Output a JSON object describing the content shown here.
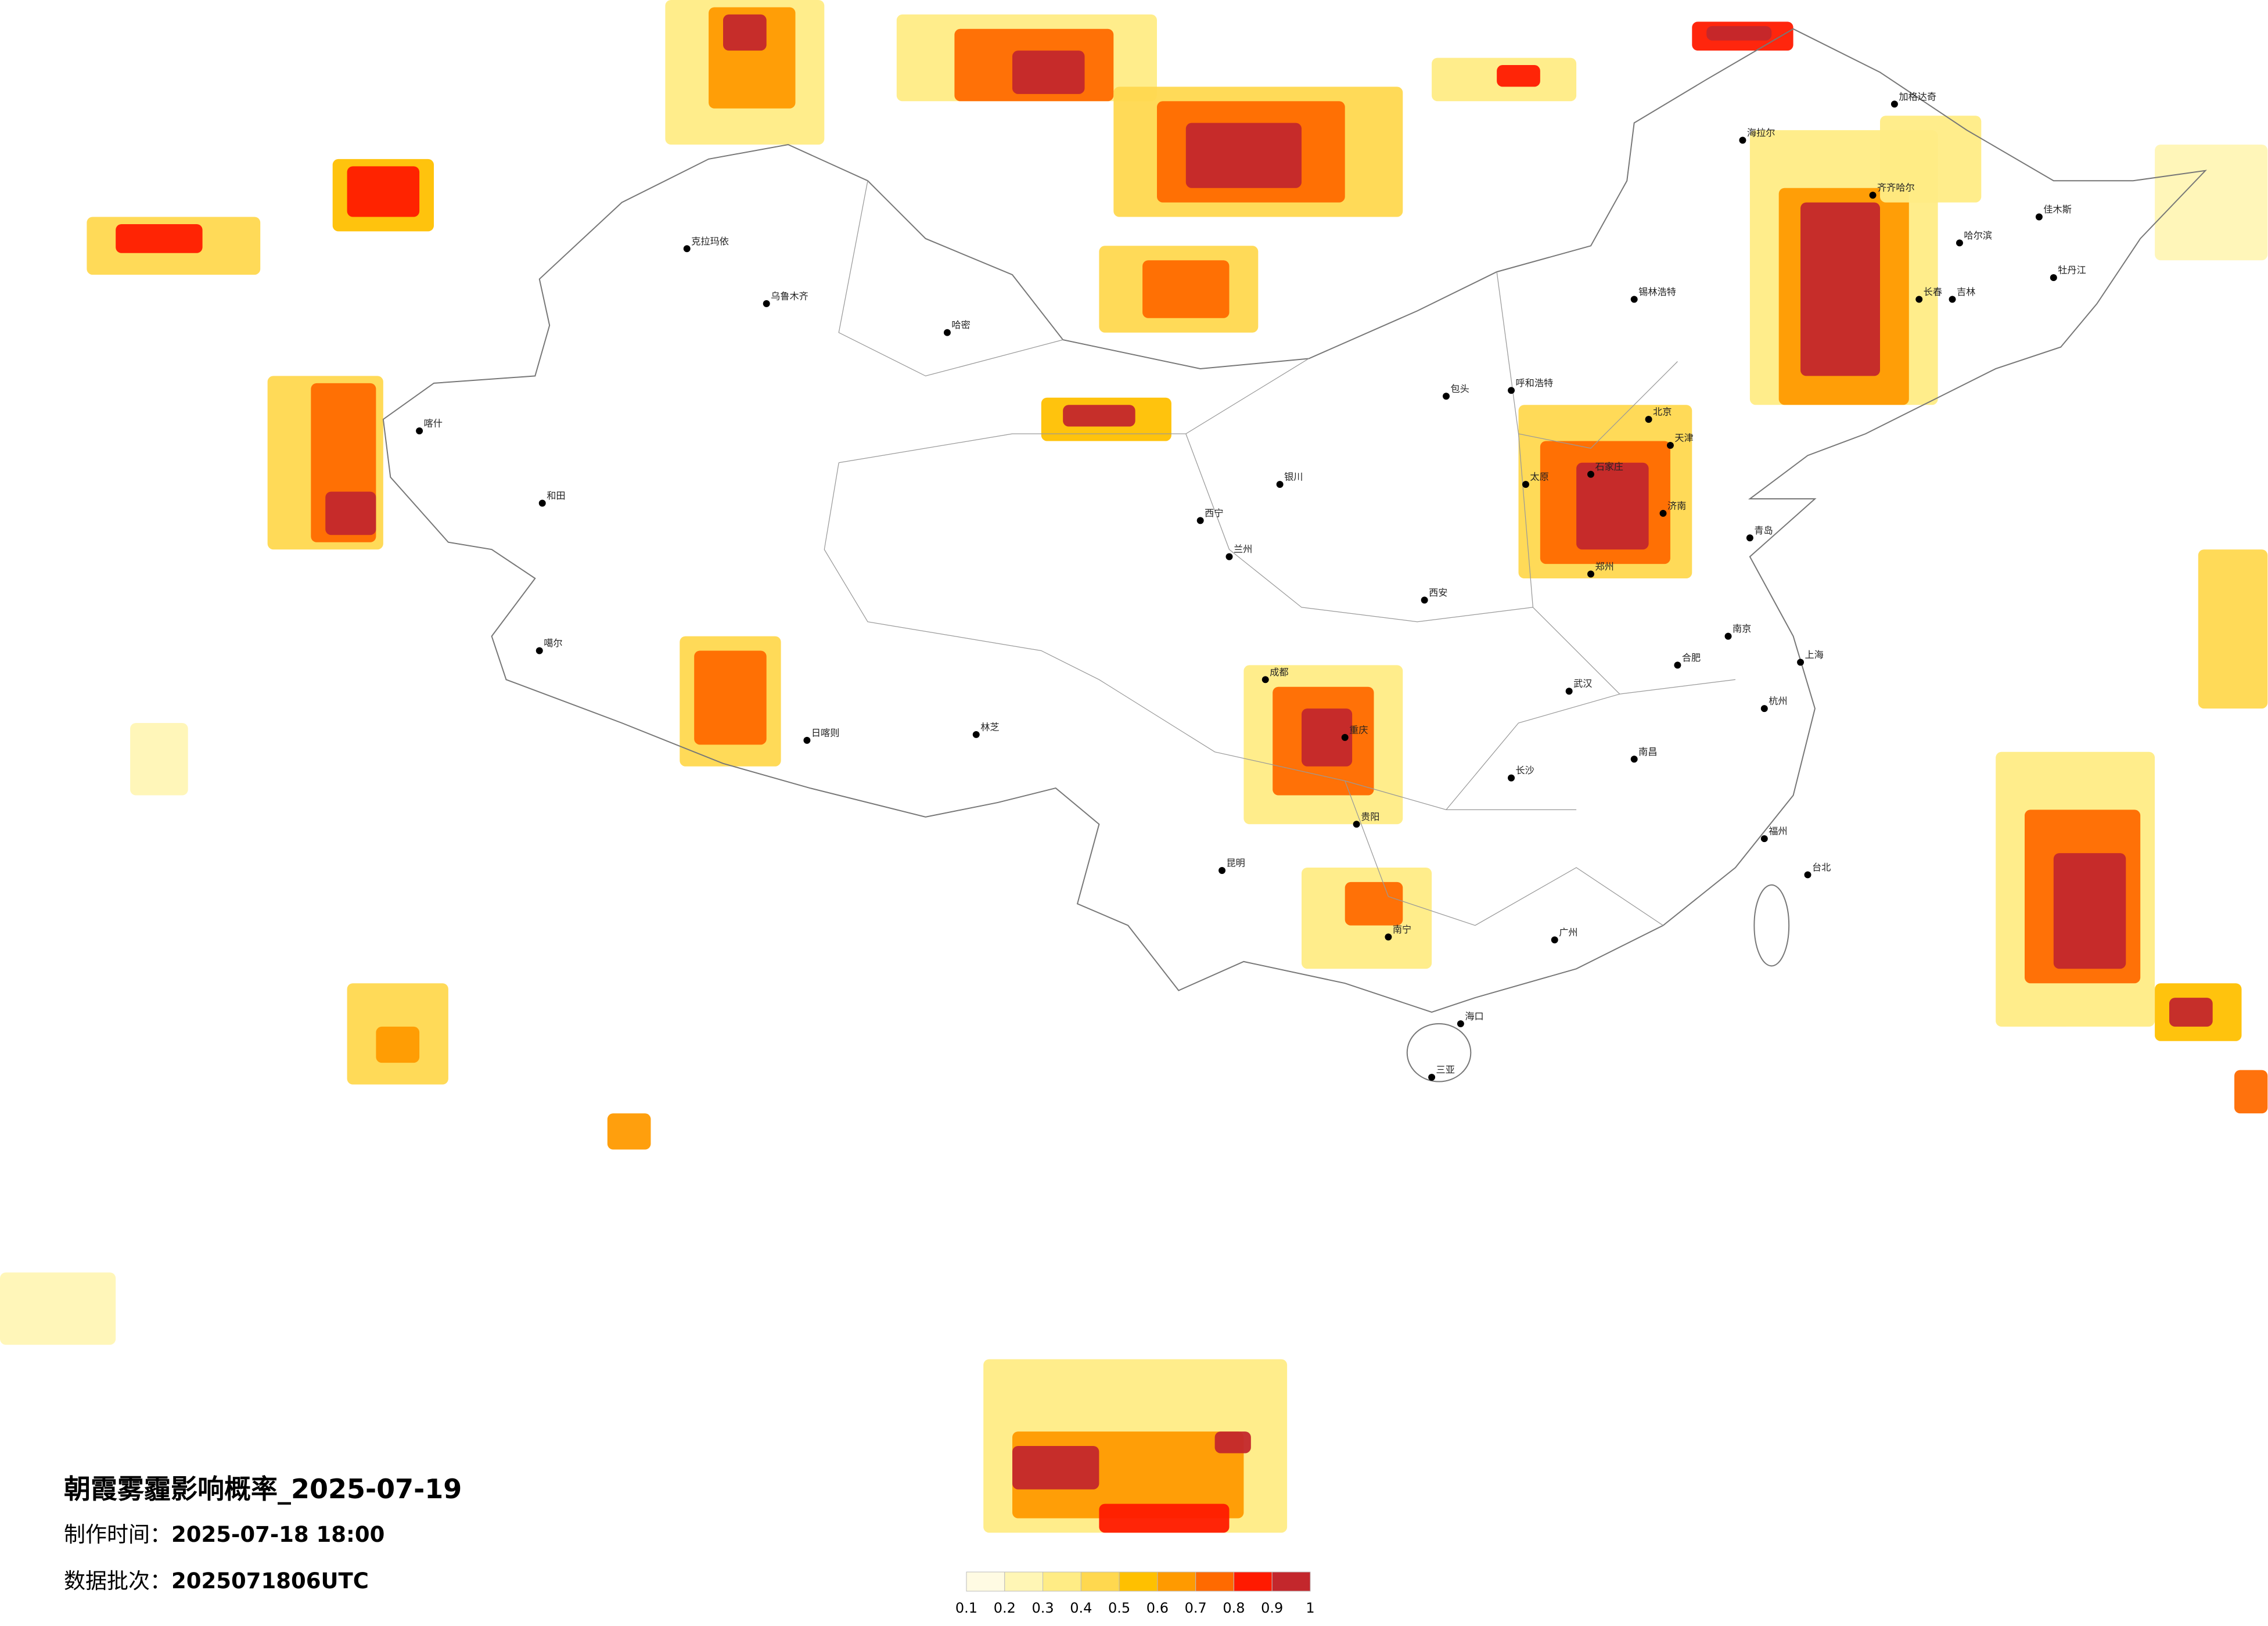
{
  "title": "朝霞雾霾影响概率_2025-07-19",
  "info": [
    {
      "label": "制作时间：",
      "value": "2025-07-18 18:00"
    },
    {
      "label": "数据批次：",
      "value": "2025071806UTC"
    }
  ],
  "legend": {
    "ticks": [
      0.1,
      0.2,
      0.3,
      0.4,
      0.5,
      0.6,
      0.7,
      0.8,
      0.9,
      1
    ],
    "colors": [
      "#fffbe3",
      "#fff6b5",
      "#ffec85",
      "#ffd84f",
      "#ffc000",
      "#ff9a00",
      "#ff6a00",
      "#ff1a00",
      "#c3272c"
    ]
  },
  "cities": [
    "海拉尔",
    "加格达奇",
    "齐齐哈尔",
    "哈尔滨",
    "长春",
    "吉林",
    "佳木斯",
    "牡丹江",
    "锡林浩特",
    "呼和浩特",
    "包头",
    "北京",
    "天津",
    "石家庄",
    "太原",
    "济南",
    "青岛",
    "郑州",
    "西安",
    "兰州",
    "银川",
    "西宁",
    "乌鲁木齐",
    "克拉玛依",
    "喀什",
    "和田",
    "哈密",
    "日喀则",
    "林芝",
    "噶尔",
    "成都",
    "重庆",
    "贵阳",
    "昆明",
    "南宁",
    "广州",
    "长沙",
    "武汉",
    "南昌",
    "合肥",
    "南京",
    "上海",
    "杭州",
    "福州",
    "台北",
    "海口",
    "三亚"
  ]
}
